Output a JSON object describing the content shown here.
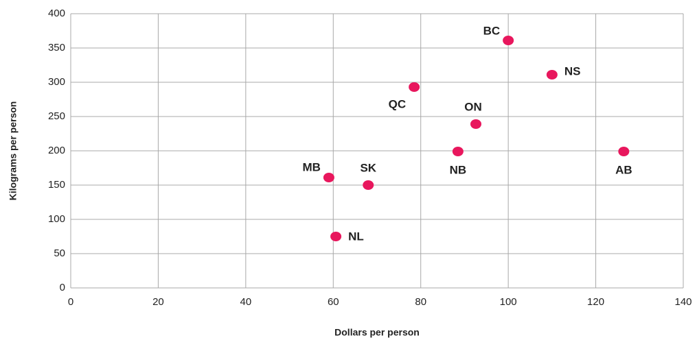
{
  "chart_data": {
    "type": "scatter",
    "x_label": "Dollars per person",
    "y_label": "Kilograms per person",
    "labels": [
      "BC",
      "NS",
      "QC",
      "ON",
      "NB",
      "AB",
      "MB",
      "SK",
      "NL"
    ],
    "x": [
      100,
      110,
      78.5,
      92.6,
      88.5,
      126.4,
      59,
      68,
      60.6
    ],
    "y": [
      361,
      311,
      293,
      239,
      199,
      199,
      161,
      150,
      75
    ],
    "color": "#e8175d",
    "xlim": [
      0,
      140
    ],
    "xticks": [
      0,
      20,
      40,
      60,
      80,
      100,
      120,
      140
    ],
    "ylim": [
      0,
      400
    ],
    "yticks": [
      0,
      50,
      100,
      150,
      200,
      250,
      300,
      350,
      400
    ],
    "grid": true
  }
}
